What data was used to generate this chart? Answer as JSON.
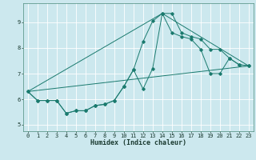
{
  "title": "",
  "xlabel": "Humidex (Indice chaleur)",
  "ylabel": "",
  "bg_color": "#cce8ee",
  "grid_color": "#ffffff",
  "line_color": "#1a7a6e",
  "xlim": [
    -0.5,
    23.5
  ],
  "ylim": [
    4.75,
    9.75
  ],
  "xticks": [
    0,
    1,
    2,
    3,
    4,
    5,
    6,
    7,
    8,
    9,
    10,
    11,
    12,
    13,
    14,
    15,
    16,
    17,
    18,
    19,
    20,
    21,
    22,
    23
  ],
  "yticks": [
    5,
    6,
    7,
    8,
    9
  ],
  "line1_x": [
    0,
    1,
    2,
    3,
    4,
    5,
    6,
    7,
    8,
    9,
    10,
    11,
    12,
    13,
    14,
    15,
    16,
    17,
    18,
    19,
    20,
    21,
    22,
    23
  ],
  "line1_y": [
    6.3,
    5.95,
    5.95,
    5.95,
    5.45,
    5.55,
    5.55,
    5.75,
    5.8,
    5.95,
    6.5,
    7.15,
    8.25,
    9.05,
    9.35,
    9.35,
    8.6,
    8.45,
    8.35,
    7.95,
    7.95,
    7.6,
    7.35,
    7.3
  ],
  "line2_x": [
    0,
    1,
    2,
    3,
    4,
    5,
    6,
    7,
    8,
    9,
    10,
    11,
    12,
    13,
    14,
    15,
    16,
    17,
    18,
    19,
    20,
    21,
    22,
    23
  ],
  "line2_y": [
    6.3,
    5.95,
    5.95,
    5.95,
    5.45,
    5.55,
    5.55,
    5.75,
    5.8,
    5.95,
    6.5,
    7.15,
    6.4,
    7.2,
    9.35,
    8.6,
    8.45,
    8.35,
    7.95,
    7.0,
    7.0,
    7.6,
    7.35,
    7.3
  ],
  "line3_x": [
    0,
    23
  ],
  "line3_y": [
    6.3,
    7.3
  ],
  "line4_x": [
    0,
    14,
    23
  ],
  "line4_y": [
    6.3,
    9.35,
    7.3
  ],
  "marker_size": 1.8,
  "line_width": 0.7,
  "tick_fontsize": 5.0,
  "xlabel_fontsize": 6.0
}
